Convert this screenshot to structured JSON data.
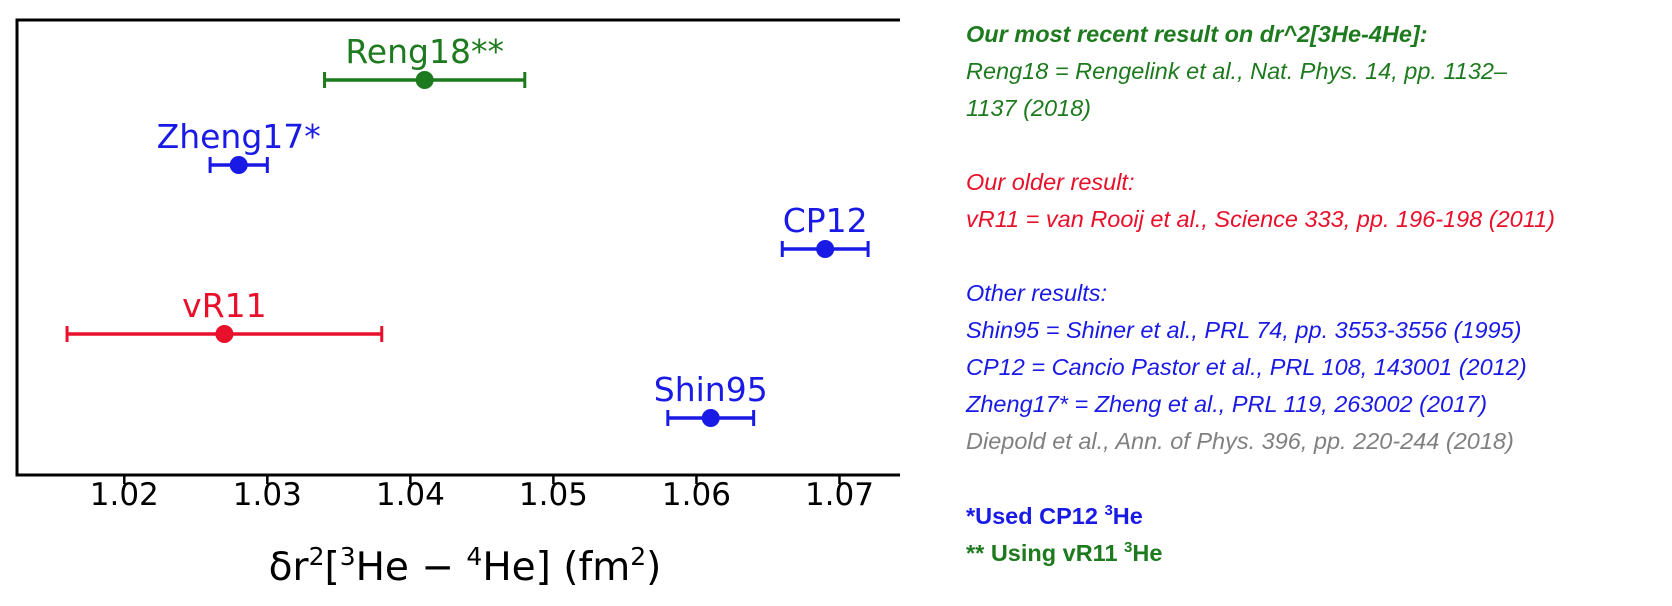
{
  "chart_data": {
    "type": "scatter",
    "xlabel": {
      "pre": "δr",
      "sup1": "2",
      "mid1": "[",
      "sup2": "3",
      "mid2": "He − ",
      "sup3": "4",
      "post": "He] (fm",
      "sup4": "2",
      "end": ")"
    },
    "xlim": [
      1.0125,
      1.075
    ],
    "xticks": [
      1.02,
      1.03,
      1.04,
      1.05,
      1.06,
      1.07
    ],
    "xtick_labels": [
      "1.02",
      "1.03",
      "1.04",
      "1.05",
      "1.06",
      "1.07"
    ],
    "grid": false,
    "legend": "none",
    "points": [
      {
        "label": "Reng18**",
        "x": 1.041,
        "err_low": 1.034,
        "err_high": 1.048,
        "row": 0,
        "color": "#1e7a1e"
      },
      {
        "label": "Zheng17*",
        "x": 1.028,
        "err_low": 1.026,
        "err_high": 1.03,
        "row": 1,
        "color": "#1a1ae6"
      },
      {
        "label": "CP12",
        "x": 1.069,
        "err_low": 1.066,
        "err_high": 1.072,
        "row": 2,
        "color": "#1a1ae6"
      },
      {
        "label": "vR11",
        "x": 1.027,
        "err_low": 1.016,
        "err_high": 1.038,
        "row": 3,
        "color": "#e8102a"
      },
      {
        "label": "Shin95",
        "x": 1.061,
        "err_low": 1.058,
        "err_high": 1.064,
        "row": 4,
        "color": "#1a1ae6"
      }
    ]
  },
  "notes": {
    "recent_heading": "Our most recent result on dr^2[3He-4He]:",
    "recent_line1": "Reng18 = Rengelink et al., Nat. Phys. 14, pp. 1132–",
    "recent_line2": "1137 (2018)",
    "older_heading": "Our older result:",
    "older_line1": "vR11 = van Rooij et al., Science 333, pp. 196-198 (2011)",
    "other_heading": "Other results:",
    "other_line1": "Shin95 = Shiner et al., PRL 74, pp. 3553-3556 (1995)",
    "other_line2": "CP12 = Cancio Pastor et al., PRL 108, 143001 (2012)",
    "other_line3": "Zheng17* = Zheng et al., PRL 119, 263002 (2017)",
    "other_line4": "Diepold et al., Ann. of Phys. 396, pp. 220-244 (2018)"
  },
  "footnotes": {
    "fn1_pre": "*Used CP12 ",
    "fn1_sup": "3",
    "fn1_post": "He",
    "fn2_pre": "** Using vR11 ",
    "fn2_sup": "3",
    "fn2_post": "He"
  },
  "colors": {
    "green": "#1e7a1e",
    "red": "#e8102a",
    "blue": "#1a1ae6",
    "gray": "#808080"
  }
}
